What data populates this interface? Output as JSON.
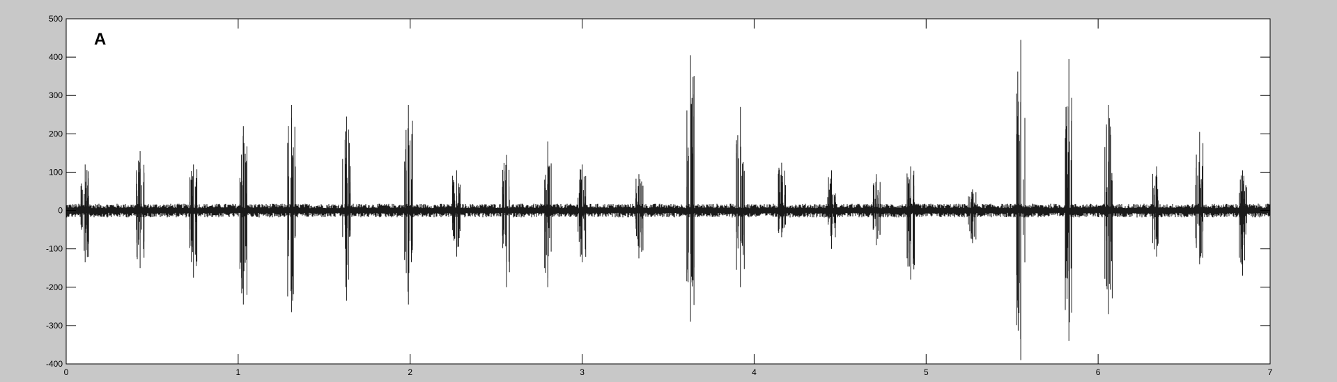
{
  "chart_data": {
    "type": "line",
    "panel_label": "A",
    "title": "",
    "xlabel": "",
    "ylabel": "",
    "xlim": [
      0,
      7
    ],
    "ylim": [
      -400,
      500
    ],
    "xticks": [
      0,
      1,
      2,
      3,
      4,
      5,
      6,
      7
    ],
    "yticks": [
      -400,
      -300,
      -200,
      -100,
      0,
      100,
      200,
      300,
      400,
      500
    ],
    "grid": false,
    "line_color": "#1a1a1a",
    "background_color": "#c8c8c8",
    "plot_background": "#ffffff",
    "baseline_noise_amplitude": 12,
    "series": [
      {
        "spikes": [
          {
            "x": 0.11,
            "max": 120,
            "min": -135
          },
          {
            "x": 0.43,
            "max": 155,
            "min": -150
          },
          {
            "x": 0.74,
            "max": 120,
            "min": -175
          },
          {
            "x": 1.03,
            "max": 220,
            "min": -245
          },
          {
            "x": 1.31,
            "max": 275,
            "min": -265
          },
          {
            "x": 1.63,
            "max": 245,
            "min": -235
          },
          {
            "x": 1.99,
            "max": 275,
            "min": -245
          },
          {
            "x": 2.27,
            "max": 105,
            "min": -120
          },
          {
            "x": 2.56,
            "max": 145,
            "min": -200
          },
          {
            "x": 2.8,
            "max": 180,
            "min": -200
          },
          {
            "x": 3.0,
            "max": 120,
            "min": -135
          },
          {
            "x": 3.33,
            "max": 95,
            "min": -125
          },
          {
            "x": 3.63,
            "max": 405,
            "min": -290
          },
          {
            "x": 3.92,
            "max": 270,
            "min": -200
          },
          {
            "x": 4.16,
            "max": 125,
            "min": -70
          },
          {
            "x": 4.45,
            "max": 105,
            "min": -100
          },
          {
            "x": 4.71,
            "max": 95,
            "min": -90
          },
          {
            "x": 4.91,
            "max": 115,
            "min": -180
          },
          {
            "x": 5.27,
            "max": 55,
            "min": -85
          },
          {
            "x": 5.55,
            "max": 445,
            "min": -390
          },
          {
            "x": 5.83,
            "max": 395,
            "min": -340
          },
          {
            "x": 6.06,
            "max": 275,
            "min": -270
          },
          {
            "x": 6.34,
            "max": 115,
            "min": -120
          },
          {
            "x": 6.59,
            "max": 205,
            "min": -140
          },
          {
            "x": 6.84,
            "max": 105,
            "min": -170
          }
        ]
      }
    ]
  }
}
